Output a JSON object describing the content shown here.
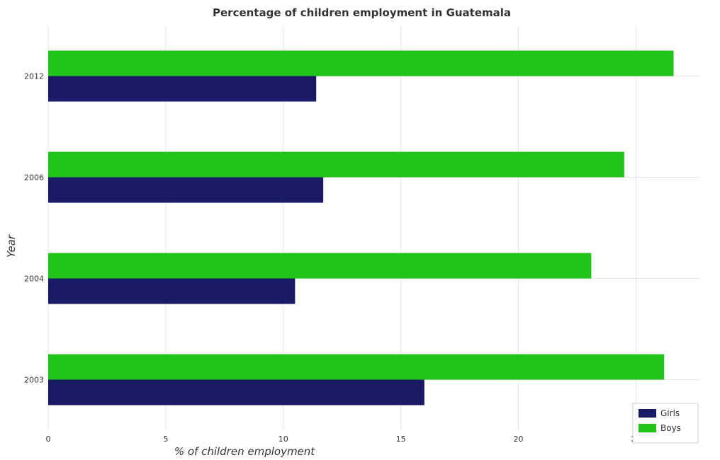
{
  "chart_data": {
    "type": "bar",
    "orientation": "horizontal",
    "title": "Percentage of children employment in Guatemala",
    "xlabel": "% of children employment",
    "ylabel": "Year",
    "categories": [
      "2003",
      "2004",
      "2006",
      "2012"
    ],
    "series": [
      {
        "name": "Girls",
        "color": "#1a1a66",
        "values": [
          16.0,
          10.5,
          11.7,
          11.4
        ]
      },
      {
        "name": "Boys",
        "color": "#22c41a",
        "values": [
          26.2,
          23.1,
          24.5,
          26.6
        ]
      }
    ],
    "xlim": [
      0,
      27.7
    ],
    "xticks": [
      0,
      5,
      10,
      15,
      20,
      25
    ],
    "grid": true,
    "legend_position": "bottom-right"
  }
}
